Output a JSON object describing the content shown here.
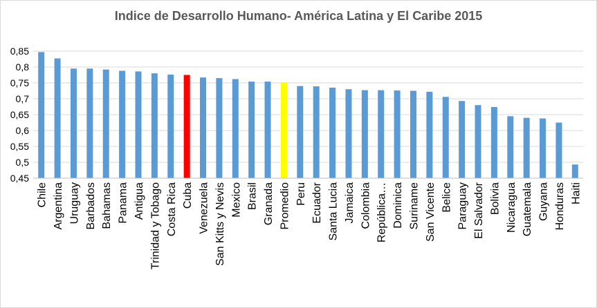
{
  "chart_data": {
    "type": "bar",
    "title": "Indice de Desarrollo Humano- América Latina y El Caribe 2015",
    "xlabel": "",
    "ylabel": "",
    "ylim": [
      0.45,
      0.85
    ],
    "yticks": [
      "0,45",
      "0,5",
      "0,55",
      "0,6",
      "0,65",
      "0,7",
      "0,75",
      "0,8",
      "0,85"
    ],
    "ytick_values": [
      0.45,
      0.5,
      0.55,
      0.6,
      0.65,
      0.7,
      0.75,
      0.8,
      0.85
    ],
    "grid": true,
    "categories": [
      "Chile",
      "Argentina",
      "Uruguay",
      "Barbados",
      "Bahamas",
      "Panama",
      "Antigua",
      "Trinidad y Tobago",
      "Costa Rica",
      "Cuba",
      "Venezuela",
      "San Kitts y Nevis",
      "Mexico",
      "Brasil",
      "Granada",
      "Promedio",
      "Peru",
      "Ecuador",
      "Santa Lucia",
      "Jamaica",
      "Colombia",
      "República…",
      "Dominica",
      "Suriname",
      "San Vicente",
      "Belice",
      "Paraguay",
      "El Salvador",
      "Bolivia",
      "Nicaragua",
      "Guatemala",
      "Guyana",
      "Honduras",
      "Haiti"
    ],
    "values": [
      0.847,
      0.827,
      0.795,
      0.795,
      0.792,
      0.788,
      0.786,
      0.78,
      0.776,
      0.775,
      0.767,
      0.765,
      0.762,
      0.754,
      0.754,
      0.752,
      0.74,
      0.739,
      0.735,
      0.73,
      0.727,
      0.727,
      0.726,
      0.725,
      0.722,
      0.706,
      0.693,
      0.68,
      0.674,
      0.645,
      0.64,
      0.638,
      0.625,
      0.493
    ],
    "bar_colors": [
      "#5b9bd5",
      "#5b9bd5",
      "#5b9bd5",
      "#5b9bd5",
      "#5b9bd5",
      "#5b9bd5",
      "#5b9bd5",
      "#5b9bd5",
      "#5b9bd5",
      "#ff0000",
      "#5b9bd5",
      "#5b9bd5",
      "#5b9bd5",
      "#5b9bd5",
      "#5b9bd5",
      "#ffff00",
      "#5b9bd5",
      "#5b9bd5",
      "#5b9bd5",
      "#5b9bd5",
      "#5b9bd5",
      "#5b9bd5",
      "#5b9bd5",
      "#5b9bd5",
      "#5b9bd5",
      "#5b9bd5",
      "#5b9bd5",
      "#5b9bd5",
      "#5b9bd5",
      "#5b9bd5",
      "#5b9bd5",
      "#5b9bd5",
      "#5b9bd5",
      "#5b9bd5"
    ]
  },
  "colors": {
    "gridline": "#d9d9d9",
    "axis": "#bfbfbf",
    "title": "#595959"
  }
}
